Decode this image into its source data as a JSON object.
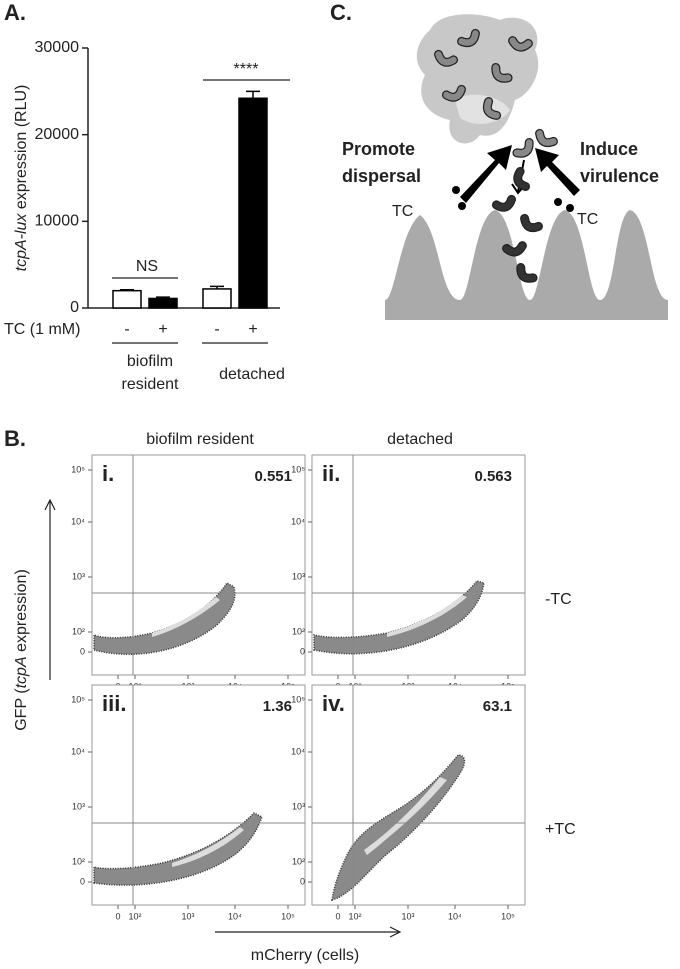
{
  "panel_labels": [
    "A.",
    "B.",
    "C."
  ],
  "chart_data": {
    "type": "bar",
    "ylabel_parts": [
      "tcpA-lux",
      " expression (RLU)"
    ],
    "category_axis_label": "TC (1 mM)",
    "categories": [
      "-",
      "+",
      "-",
      "+"
    ],
    "groups": [
      "biofilm resident",
      "detached"
    ],
    "values": [
      2000,
      1100,
      2200,
      24200
    ],
    "errors": [
      100,
      150,
      300,
      800
    ],
    "colors": [
      "#ffffff",
      "#000000",
      "#ffffff",
      "#000000"
    ],
    "ylim": [
      0,
      30000
    ],
    "yticks": [
      0,
      10000,
      20000,
      30000
    ],
    "annotations": [
      "NS",
      "****"
    ]
  },
  "flow": {
    "columns": [
      "biofilm resident",
      "detached"
    ],
    "rows": [
      "-TC",
      "+TC"
    ],
    "panels": [
      {
        "label": "i.",
        "value": "0.551"
      },
      {
        "label": "ii.",
        "value": "0.563"
      },
      {
        "label": "iii.",
        "value": "1.36"
      },
      {
        "label": "iv.",
        "value": "63.1"
      }
    ],
    "y_tick_labels": [
      "10⁵",
      "10⁴",
      "10³",
      "10²",
      "0"
    ],
    "x_tick_labels": [
      "0",
      "10²",
      "10³",
      "10⁴",
      "10⁵"
    ],
    "ylabel_parts": [
      "GFP (",
      "tcpA",
      " expression)"
    ],
    "xlabel": "mCherry (cells)"
  },
  "diagram": {
    "left_label": "Promote dispersal",
    "right_label": "Induce virulence",
    "left_tc": "TC",
    "right_tc": "TC"
  }
}
